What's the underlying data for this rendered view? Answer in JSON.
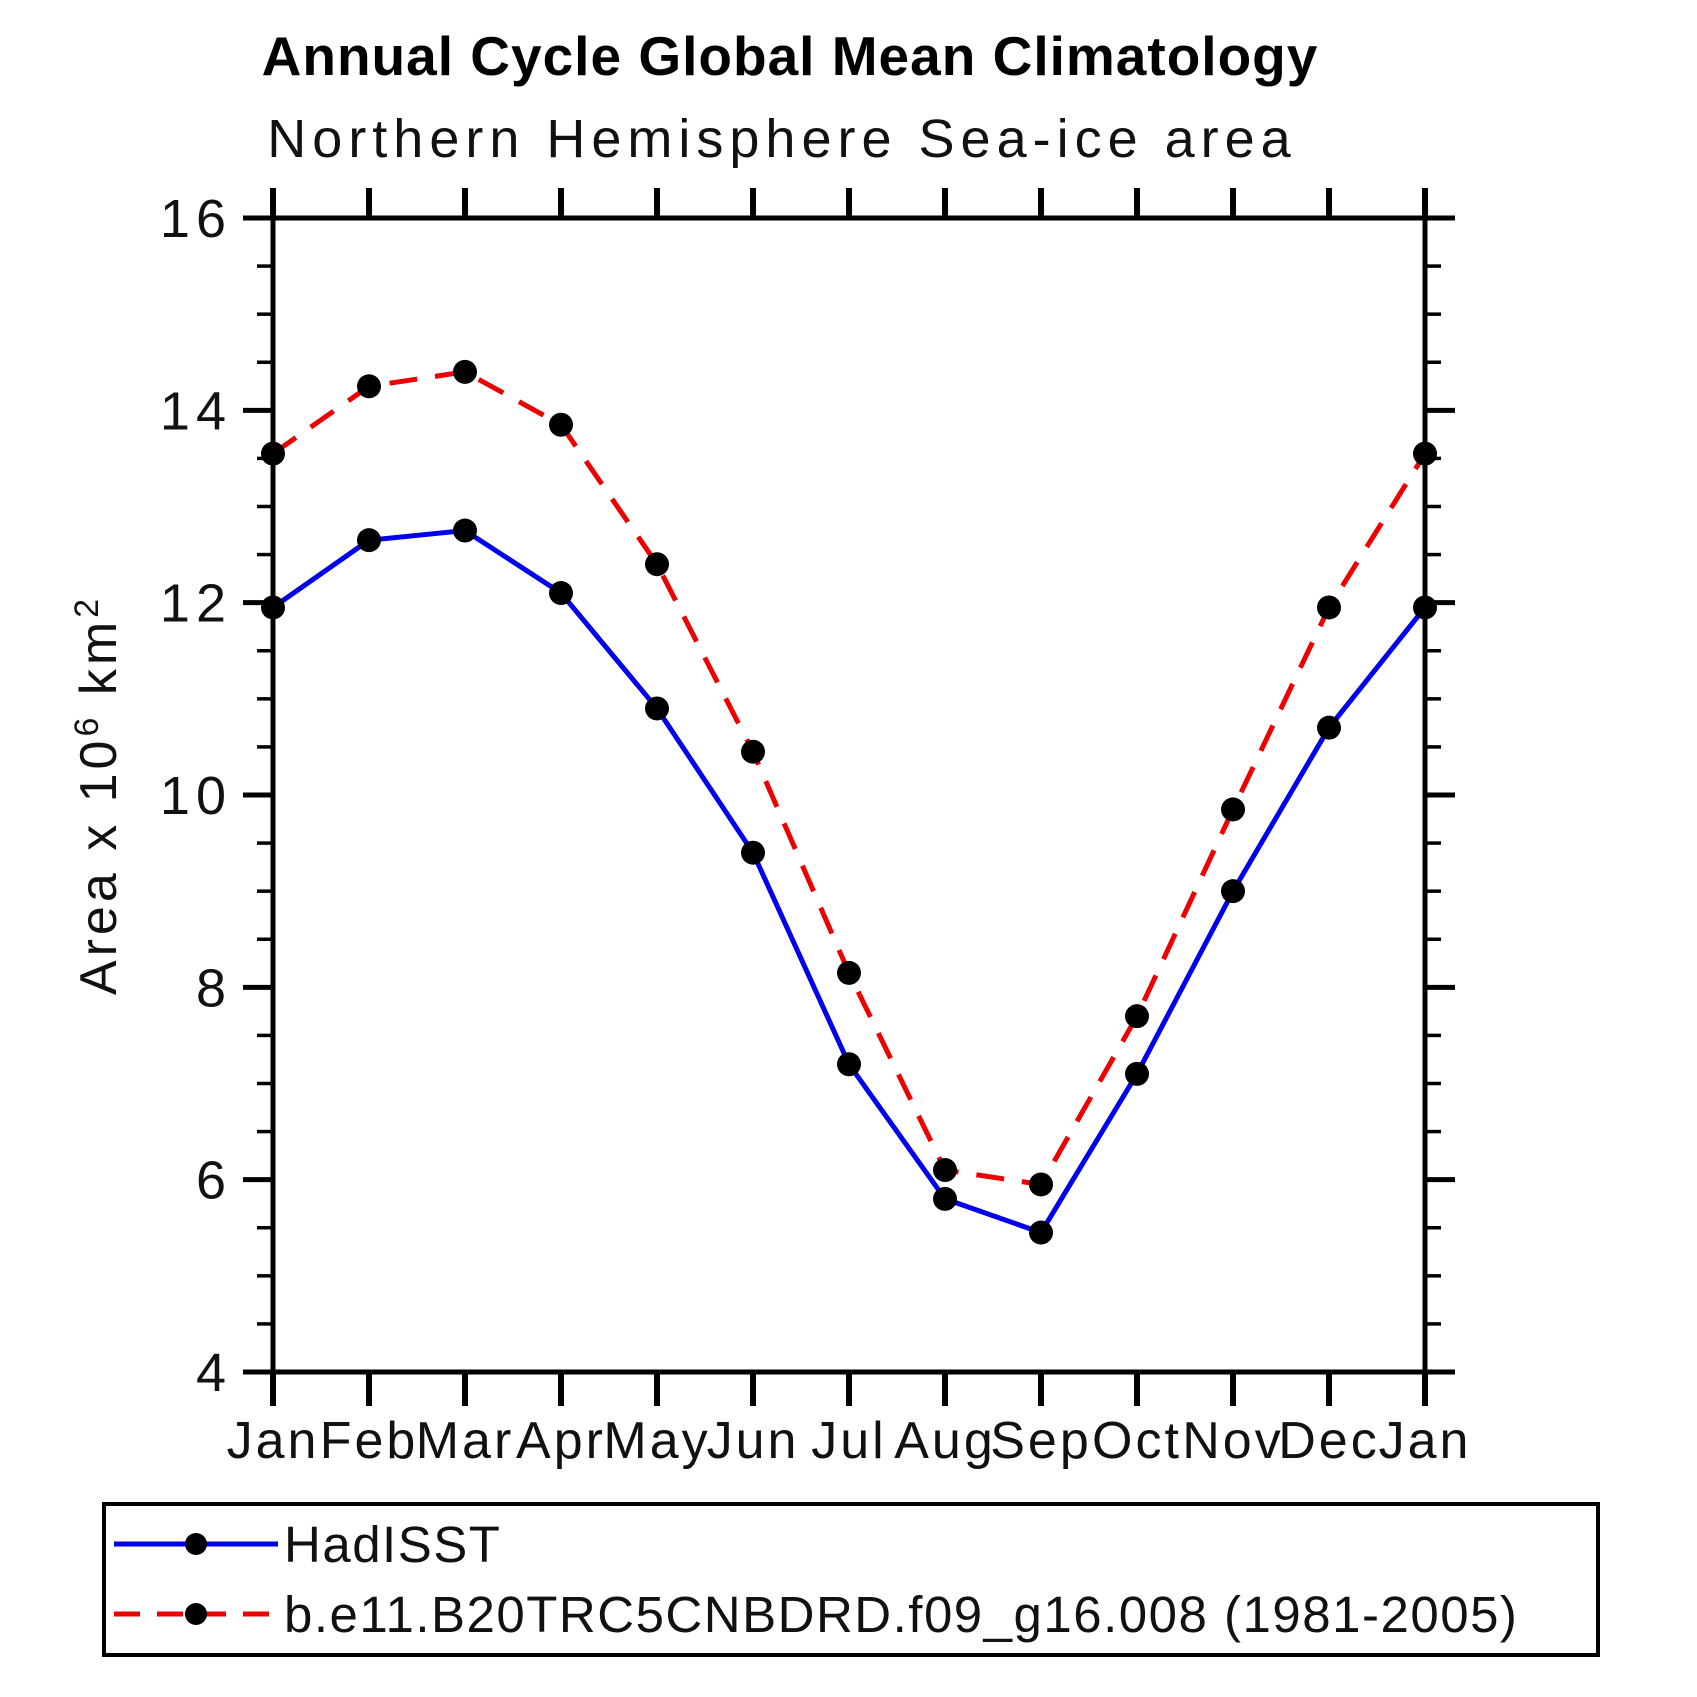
{
  "chart_data": {
    "type": "line",
    "title": "Annual Cycle Global Mean Climatology",
    "subtitle": "Northern Hemisphere Sea-ice area",
    "ylabel": "Area x 10⁶ km²",
    "ylabel_parts": [
      {
        "t": "Area x 10",
        "sup": false
      },
      {
        "t": "6",
        "sup": true
      },
      {
        "t": " km",
        "sup": false
      },
      {
        "t": "2",
        "sup": true
      }
    ],
    "categories": [
      "Jan",
      "Feb",
      "Mar",
      "Apr",
      "May",
      "Jun",
      "Jul",
      "Aug",
      "Sep",
      "Oct",
      "Nov",
      "Dec",
      "Jan"
    ],
    "ylim": [
      4,
      16
    ],
    "ytick_major": [
      4,
      6,
      8,
      10,
      12,
      14,
      16
    ],
    "ytick_minor_step": 0.5,
    "grid": false,
    "frame": "box-outward-ticks",
    "legend_position": "bottom-left-box",
    "marker": {
      "shape": "circle",
      "color": "#000000"
    },
    "series": [
      {
        "name": "HadISST",
        "color": "#0000ee",
        "style": "solid",
        "values": [
          11.95,
          12.65,
          12.75,
          12.1,
          10.9,
          9.4,
          7.2,
          5.8,
          5.45,
          7.1,
          9.0,
          10.7,
          11.95
        ]
      },
      {
        "name": "b.e11.B20TRC5CNBDRD.f09_g16.008 (1981-2005)",
        "color": "#ee0000",
        "style": "dashed",
        "values": [
          13.55,
          14.25,
          14.4,
          13.85,
          12.4,
          10.45,
          8.15,
          6.1,
          5.95,
          7.7,
          9.85,
          11.95,
          13.55
        ]
      }
    ]
  }
}
